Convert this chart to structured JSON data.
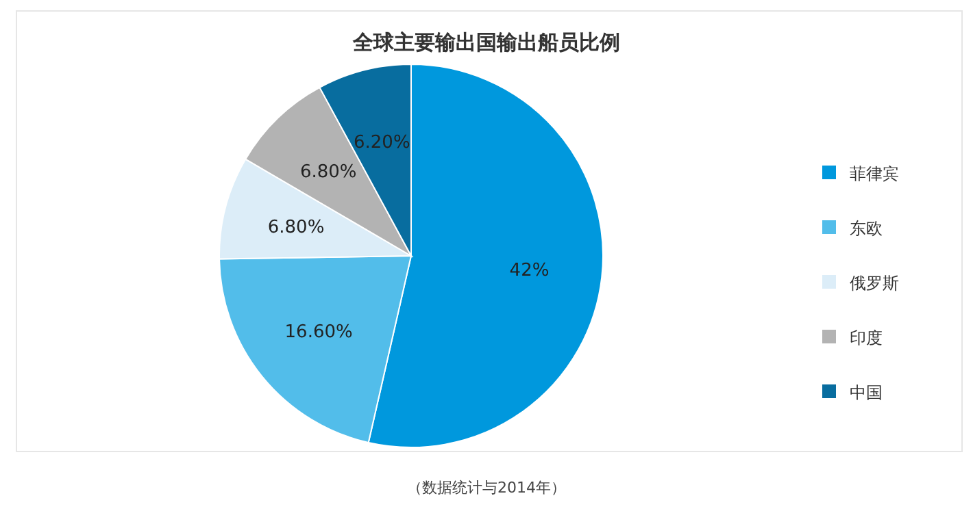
{
  "chart_data": {
    "type": "pie",
    "title": "全球主要输出国输出船员比例",
    "categories": [
      "菲律宾",
      "东欧",
      "俄罗斯",
      "印度",
      "中国"
    ],
    "values": [
      42,
      16.6,
      6.8,
      6.8,
      6.2
    ],
    "value_labels": [
      "42%",
      "16.60%",
      "6.80%",
      "6.80%",
      "6.20%"
    ],
    "colors": [
      "#0098dd",
      "#52bdea",
      "#dcedf8",
      "#b3b3b3",
      "#086d9f"
    ],
    "legend": "right",
    "annotations": [
      "（数据统计与2014年）"
    ]
  }
}
